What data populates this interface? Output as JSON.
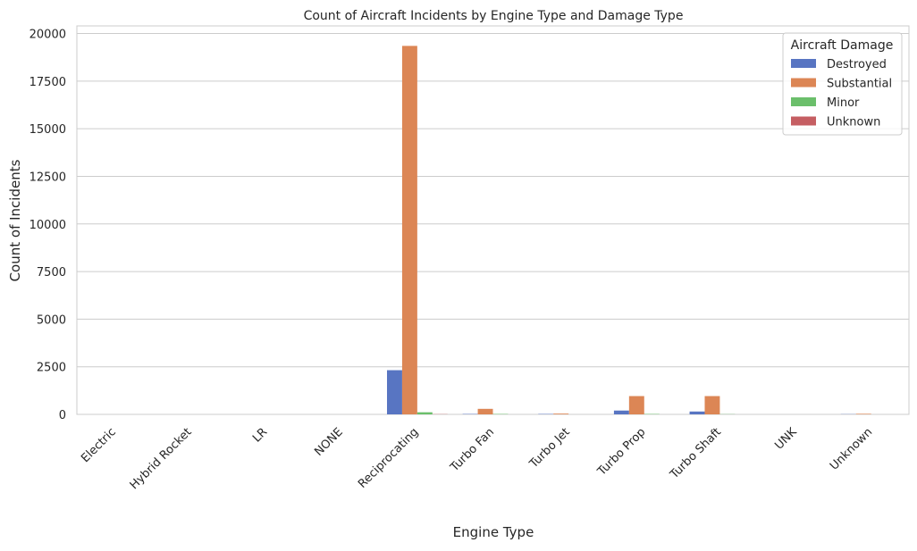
{
  "chart_data": {
    "type": "bar",
    "title": "Count of Aircraft Incidents by Engine Type and Damage Type",
    "xlabel": "Engine Type",
    "ylabel": "Count of Incidents",
    "ylim": [
      0,
      20400
    ],
    "yticks": [
      0,
      2500,
      5000,
      7500,
      10000,
      12500,
      15000,
      17500,
      20000
    ],
    "grid": true,
    "legend_title": "Aircraft Damage",
    "legend_position": "top-right",
    "categories": [
      "Electric",
      "Hybrid Rocket",
      "LR",
      "NONE",
      "Reciprocating",
      "Turbo Fan",
      "Turbo Jet",
      "Turbo Prop",
      "Turbo Shaft",
      "UNK",
      "Unknown"
    ],
    "series": [
      {
        "name": "Destroyed",
        "color": "#5875c2",
        "values": [
          0,
          0,
          0,
          0,
          2320,
          20,
          20,
          200,
          150,
          0,
          10
        ]
      },
      {
        "name": "Substantial",
        "color": "#dc8655",
        "values": [
          0,
          0,
          0,
          0,
          19350,
          290,
          40,
          960,
          960,
          0,
          30
        ]
      },
      {
        "name": "Minor",
        "color": "#6bbf6b",
        "values": [
          0,
          0,
          0,
          0,
          110,
          20,
          0,
          20,
          10,
          0,
          0
        ]
      },
      {
        "name": "Unknown",
        "color": "#c55e62",
        "values": [
          0,
          0,
          0,
          0,
          10,
          0,
          0,
          0,
          0,
          0,
          0
        ]
      }
    ]
  }
}
